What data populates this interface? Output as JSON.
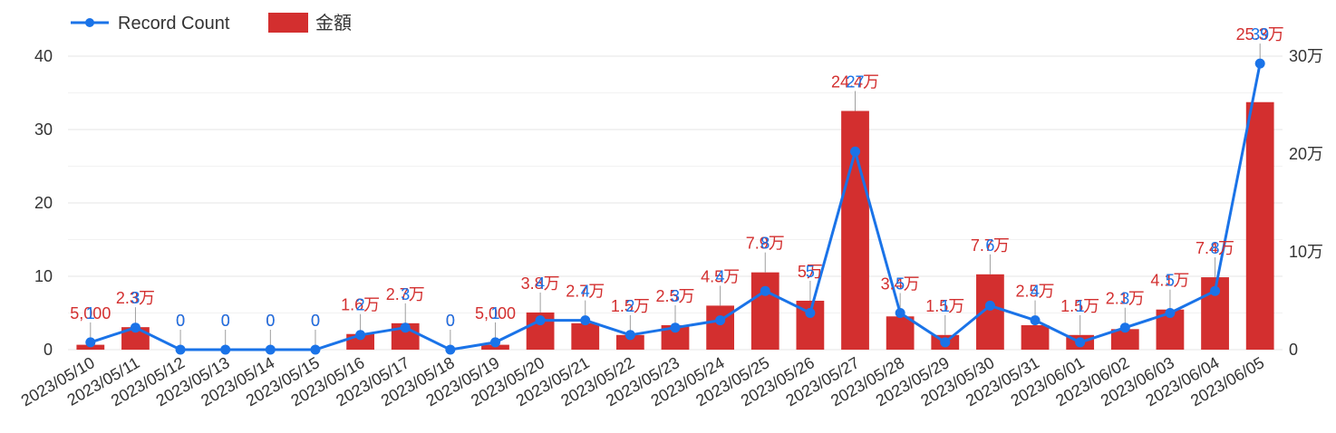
{
  "chart_data": {
    "type": "bar",
    "categories": [
      "2023/05/10",
      "2023/05/11",
      "2023/05/12",
      "2023/05/13",
      "2023/05/14",
      "2023/05/15",
      "2023/05/16",
      "2023/05/17",
      "2023/05/18",
      "2023/05/19",
      "2023/05/20",
      "2023/05/21",
      "2023/05/22",
      "2023/05/23",
      "2023/05/24",
      "2023/05/25",
      "2023/05/26",
      "2023/05/27",
      "2023/05/28",
      "2023/05/29",
      "2023/05/30",
      "2023/05/31",
      "2023/06/01",
      "2023/06/02",
      "2023/06/03",
      "2023/06/04",
      "2023/06/05"
    ],
    "series": [
      {
        "name": "金額",
        "type": "bar",
        "axis": "right",
        "color": "#d32f2f",
        "values": [
          5000,
          23000,
          0,
          0,
          0,
          0,
          16000,
          27000,
          0,
          5000,
          38000,
          27000,
          15000,
          25000,
          45000,
          79000,
          50000,
          244000,
          34000,
          15000,
          77000,
          25000,
          15000,
          21000,
          41000,
          74000,
          253000
        ],
        "labels": [
          "5,000",
          "2.3万",
          "0",
          "0",
          "0",
          "0",
          "1.6万",
          "2.7万",
          "0",
          "5,000",
          "3.8万",
          "2.7万",
          "1.5万",
          "2.5万",
          "4.5万",
          "7.9万",
          "5万",
          "24.4万",
          "3.4万",
          "1.5万",
          "7.7万",
          "2.5万",
          "1.5万",
          "2.1万",
          "4.1万",
          "7.4万",
          "25.3万"
        ]
      },
      {
        "name": "Record Count",
        "type": "line",
        "axis": "left",
        "color": "#1a73e8",
        "values": [
          1,
          3,
          0,
          0,
          0,
          0,
          2,
          3,
          0,
          1,
          4,
          4,
          2,
          3,
          4,
          8,
          5,
          27,
          5,
          1,
          6,
          4,
          1,
          3,
          5,
          8,
          39
        ]
      }
    ],
    "left_axis": {
      "ticks": [
        "0",
        "10",
        "20",
        "30",
        "40"
      ],
      "range": [
        0,
        40
      ]
    },
    "right_axis": {
      "ticks": [
        "0",
        "10万",
        "20万",
        "30万"
      ],
      "range": [
        0,
        300000
      ]
    },
    "grid": true,
    "legend": "top-left"
  }
}
